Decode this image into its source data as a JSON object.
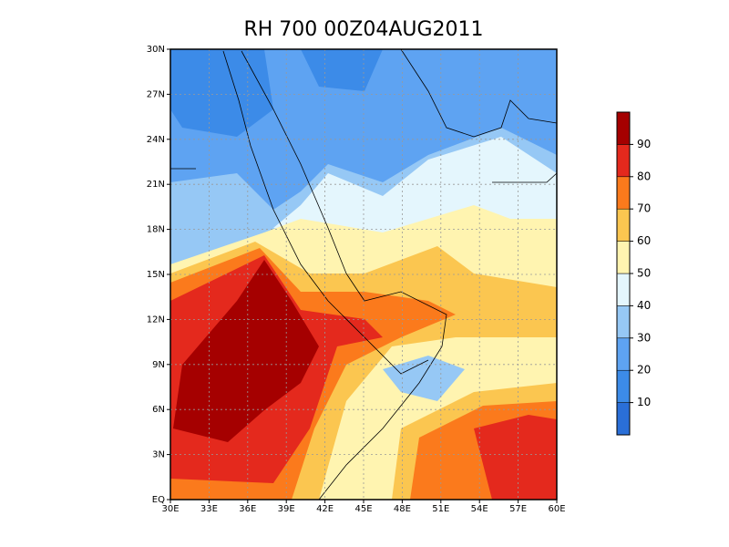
{
  "chart_data": {
    "type": "map",
    "title": "RH 700 00Z04AUG2011",
    "xlim": [
      30,
      60
    ],
    "ylim": [
      0,
      30
    ],
    "xticks": [
      {
        "value": 30,
        "label": "30E"
      },
      {
        "value": 33,
        "label": "33E"
      },
      {
        "value": 36,
        "label": "36E"
      },
      {
        "value": 39,
        "label": "39E"
      },
      {
        "value": 42,
        "label": "42E"
      },
      {
        "value": 45,
        "label": "45E"
      },
      {
        "value": 48,
        "label": "48E"
      },
      {
        "value": 51,
        "label": "51E"
      },
      {
        "value": 54,
        "label": "54E"
      },
      {
        "value": 57,
        "label": "57E"
      },
      {
        "value": 60,
        "label": "60E"
      }
    ],
    "yticks": [
      {
        "value": 0,
        "label": "EQ"
      },
      {
        "value": 3,
        "label": "3N"
      },
      {
        "value": 6,
        "label": "6N"
      },
      {
        "value": 9,
        "label": "9N"
      },
      {
        "value": 12,
        "label": "12N"
      },
      {
        "value": 15,
        "label": "15N"
      },
      {
        "value": 18,
        "label": "18N"
      },
      {
        "value": 21,
        "label": "21N"
      },
      {
        "value": 24,
        "label": "24N"
      },
      {
        "value": 27,
        "label": "27N"
      },
      {
        "value": 30,
        "label": "30N"
      }
    ],
    "grid": true,
    "colorbar": {
      "clim": [
        0,
        100
      ],
      "levels": [
        10,
        20,
        30,
        40,
        50,
        60,
        70,
        80,
        90
      ],
      "colors": [
        "#2a6fd8",
        "#3c8be8",
        "#5ea3f2",
        "#96c8f5",
        "#e4f6fd",
        "#fff4b0",
        "#fbc650",
        "#fb7a1c",
        "#e4291d",
        "#a50000"
      ]
    }
  }
}
